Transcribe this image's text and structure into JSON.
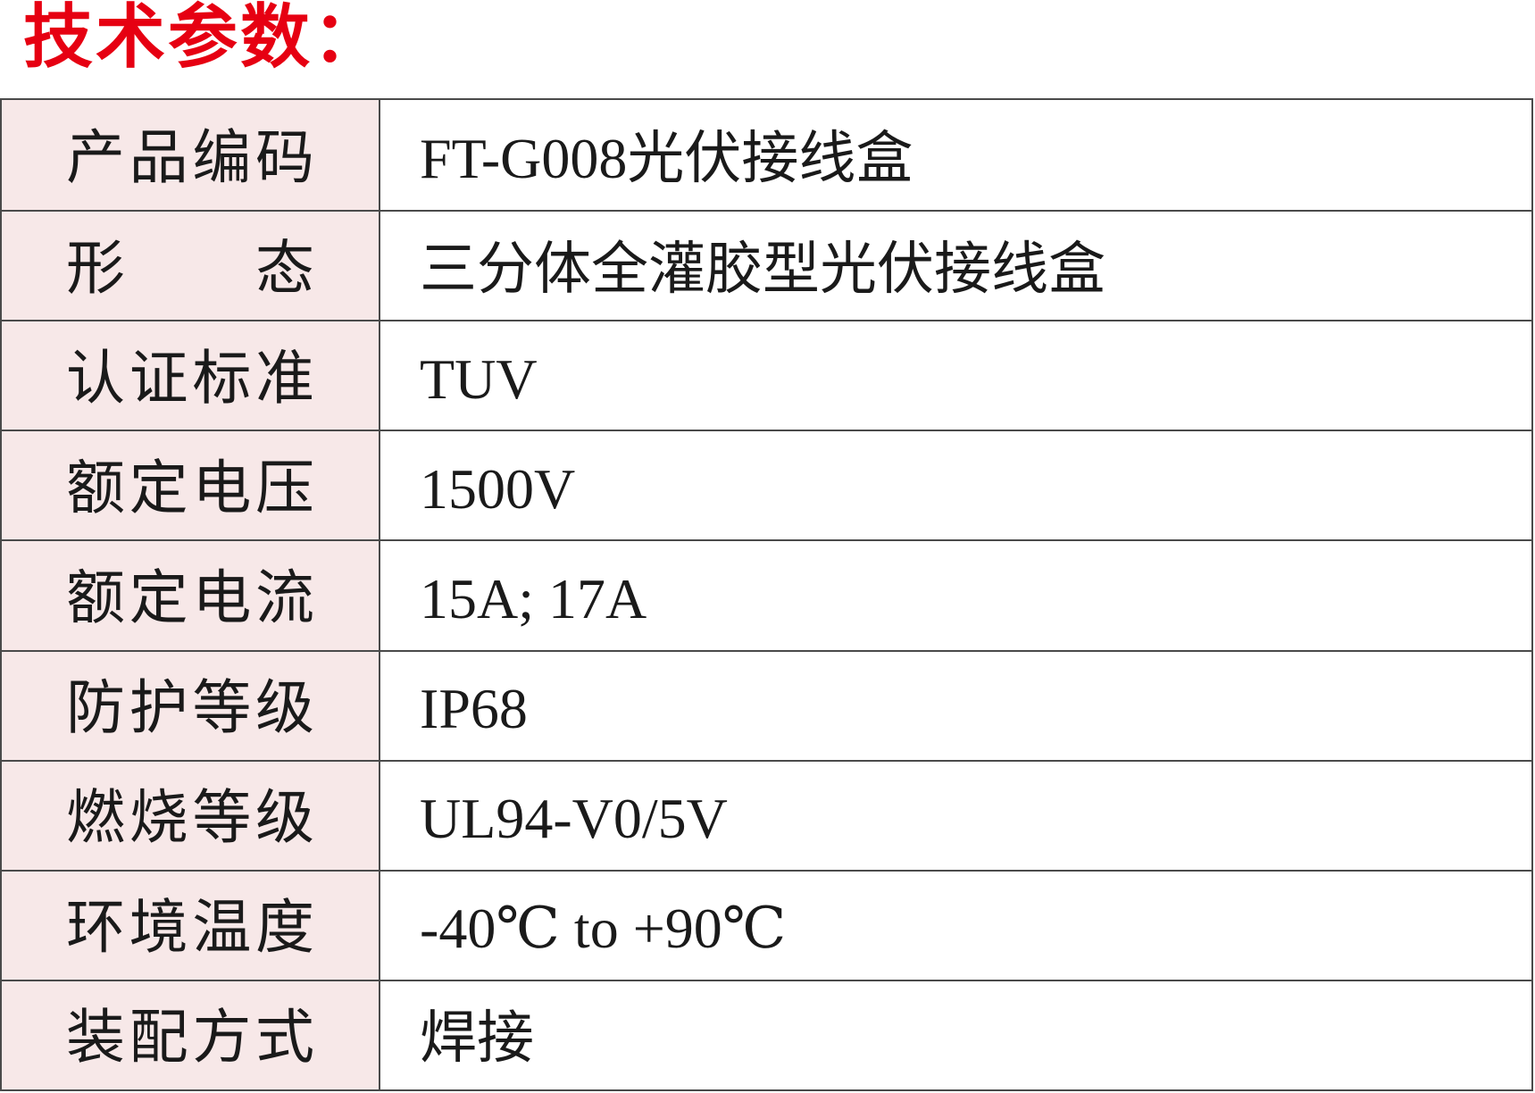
{
  "title": "技术参数：",
  "colors": {
    "title_red": "#e60012",
    "label_bg": "#f7e8e8",
    "border": "#4a4a4a",
    "text": "#1a1a1a"
  },
  "table": {
    "rows": [
      {
        "label": "产品编码",
        "value": "FT-G008光伏接线盒"
      },
      {
        "label": "形态",
        "value": "三分体全灌胶型光伏接线盒"
      },
      {
        "label": "认证标准",
        "value": "TUV"
      },
      {
        "label": "额定电压",
        "value": "1500V"
      },
      {
        "label": "额定电流",
        "value": "15A; 17A"
      },
      {
        "label": "防护等级",
        "value": "IP68"
      },
      {
        "label": "燃烧等级",
        "value": "UL94-V0/5V"
      },
      {
        "label": "环境温度",
        "value": "-40℃ to +90℃"
      },
      {
        "label": "装配方式",
        "value": "焊接"
      }
    ]
  }
}
